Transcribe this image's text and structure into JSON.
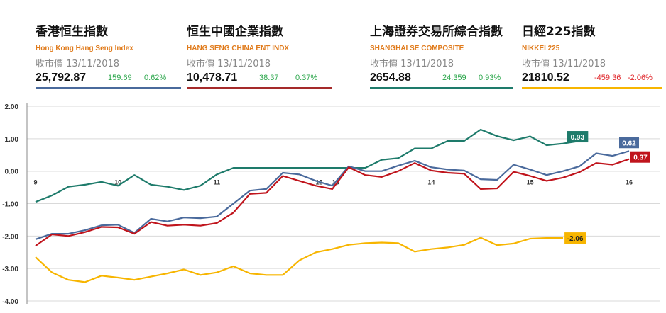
{
  "cards": [
    {
      "cn": "香港恒生指數",
      "en": "Hong Kong Hang Seng Index",
      "date": "收市價 13/11/2018",
      "price": "25,792.87",
      "change": "159.69",
      "pct": "0.62%",
      "up": true,
      "color": "#4a6a9c"
    },
    {
      "cn": "恒生中國企業指數",
      "en": "HANG SENG CHINA ENT INDX",
      "date": "收市價 13/11/2018",
      "price": "10,478.71",
      "change": "38.37",
      "pct": "0.37%",
      "up": true,
      "color": "#a52a2a"
    },
    {
      "cn": "上海證券交易所綜合指數",
      "en": "SHANGHAI SE COMPOSITE",
      "date": "收市價 13/11/2018",
      "price": "2654.88",
      "change": "24.359",
      "pct": "0.93%",
      "up": true,
      "color": "#1e7b6b"
    },
    {
      "cn": "日經225指數",
      "en": "NIKKEI 225",
      "date": "收市價 13/11/2018",
      "price": "21810.52",
      "change": "-459.36",
      "pct": "-2.06%",
      "up": false,
      "color": "#f7b500"
    }
  ],
  "colors": {
    "up": "#2aa64a",
    "down": "#e0262a"
  },
  "chart_data": {
    "type": "line",
    "grid": true,
    "ylim": [
      -4,
      2
    ],
    "yticks": [
      "2.00",
      "1.00",
      "0.00",
      "-1.00",
      "-2.00",
      "-3.00",
      "-4.00"
    ],
    "xlim": [
      0,
      37
    ],
    "xticks": [
      {
        "label": "9",
        "x": 0
      },
      {
        "label": "10",
        "x": 5
      },
      {
        "label": "11",
        "x": 11
      },
      {
        "label": "12",
        "x": 17.2
      },
      {
        "label": "13",
        "x": 18.2
      },
      {
        "label": "14",
        "x": 24
      },
      {
        "label": "15",
        "x": 30
      },
      {
        "label": "16",
        "x": 36
      }
    ],
    "series": [
      {
        "name": "SHANGHAI SE COMPOSITE",
        "color": "#1e7b6b",
        "end_label": "0.93",
        "x": [
          0,
          1,
          2,
          3,
          4,
          5,
          6,
          7,
          8,
          9,
          10,
          11,
          12,
          13,
          14,
          15,
          16,
          17,
          18,
          19,
          20,
          21,
          22,
          23,
          24,
          25,
          26,
          27,
          28,
          29,
          30,
          31,
          32,
          33
        ],
        "values": [
          -0.95,
          -0.75,
          -0.48,
          -0.42,
          -0.33,
          -0.45,
          -0.12,
          -0.42,
          -0.48,
          -0.58,
          -0.45,
          -0.1,
          0.1,
          0.1,
          0.1,
          0.1,
          0.1,
          0.1,
          0.1,
          0.1,
          0.1,
          0.35,
          0.4,
          0.7,
          0.7,
          0.93,
          0.93,
          1.28,
          1.08,
          0.95,
          1.07,
          0.8,
          0.85,
          0.93
        ]
      },
      {
        "name": "Hong Kong Hang Seng Index",
        "color": "#4a6a9c",
        "end_label": "0.62",
        "x": [
          0,
          1,
          2,
          3,
          4,
          5,
          6,
          7,
          8,
          9,
          10,
          11,
          12,
          13,
          14,
          15,
          16,
          17,
          18,
          19,
          20,
          21,
          22,
          23,
          24,
          25,
          26,
          27,
          28,
          29,
          30,
          31,
          32,
          33,
          34,
          35,
          36
        ],
        "values": [
          -2.1,
          -1.93,
          -1.93,
          -1.82,
          -1.67,
          -1.65,
          -1.9,
          -1.47,
          -1.55,
          -1.43,
          -1.45,
          -1.4,
          -1.0,
          -0.6,
          -0.55,
          -0.05,
          -0.1,
          -0.3,
          -0.45,
          0.15,
          0.0,
          0.0,
          0.17,
          0.32,
          0.12,
          0.05,
          0.02,
          -0.25,
          -0.27,
          0.2,
          0.05,
          -0.12,
          0.0,
          0.15,
          0.55,
          0.47,
          0.62
        ]
      },
      {
        "name": "HANG SENG CHINA ENT INDX",
        "color": "#c0141c",
        "end_label": "0.37",
        "x": [
          0,
          1,
          2,
          3,
          4,
          5,
          6,
          7,
          8,
          9,
          10,
          11,
          12,
          13,
          14,
          15,
          16,
          17,
          18,
          19,
          20,
          21,
          22,
          23,
          24,
          25,
          26,
          27,
          28,
          29,
          30,
          31,
          32,
          33,
          34,
          35,
          36
        ],
        "values": [
          -2.3,
          -1.95,
          -2.0,
          -1.88,
          -1.72,
          -1.73,
          -1.93,
          -1.57,
          -1.68,
          -1.65,
          -1.68,
          -1.6,
          -1.28,
          -0.7,
          -0.67,
          -0.15,
          -0.3,
          -0.45,
          -0.55,
          0.12,
          -0.12,
          -0.18,
          0.0,
          0.25,
          0.02,
          -0.05,
          -0.08,
          -0.55,
          -0.53,
          -0.02,
          -0.15,
          -0.3,
          -0.2,
          -0.03,
          0.25,
          0.2,
          0.37
        ]
      },
      {
        "name": "NIKKEI 225",
        "color": "#f7b500",
        "end_label": "-2.06",
        "x": [
          0,
          1,
          2,
          3,
          4,
          5,
          6,
          7,
          8,
          9,
          10,
          11,
          12,
          13,
          14,
          15,
          16,
          17,
          18,
          19,
          20,
          21,
          22,
          23,
          24,
          25,
          26,
          27,
          28,
          29,
          30,
          31,
          32
        ],
        "values": [
          -2.65,
          -3.12,
          -3.35,
          -3.42,
          -3.22,
          -3.28,
          -3.35,
          -3.25,
          -3.15,
          -3.03,
          -3.2,
          -3.12,
          -2.93,
          -3.15,
          -3.2,
          -3.2,
          -2.75,
          -2.5,
          -2.4,
          -2.27,
          -2.22,
          -2.2,
          -2.22,
          -2.48,
          -2.4,
          -2.35,
          -2.27,
          -2.05,
          -2.28,
          -2.23,
          -2.08,
          -2.06,
          -2.06
        ]
      }
    ]
  }
}
